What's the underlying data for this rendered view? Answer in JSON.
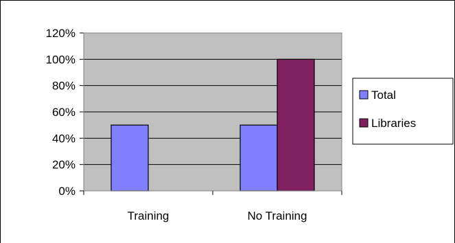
{
  "chart_data": {
    "type": "bar",
    "categories": [
      "Training",
      "No Training"
    ],
    "series": [
      {
        "name": "Total",
        "values": [
          50,
          50
        ],
        "color": "#8080ff"
      },
      {
        "name": "Libraries",
        "values": [
          0,
          100
        ],
        "color": "#802060"
      }
    ],
    "ylim": [
      0,
      120
    ],
    "yticks": [
      "0%",
      "20%",
      "40%",
      "60%",
      "80%",
      "100%",
      "120%"
    ],
    "grid": true,
    "plot_background": "#c0c0c0",
    "legend_position": "right"
  }
}
